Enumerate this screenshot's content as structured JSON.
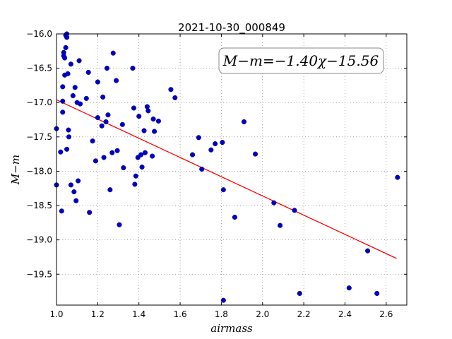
{
  "chart_data": {
    "type": "scatter",
    "title": "2021-10-30_000849",
    "xlabel": "airmass",
    "ylabel": "M−m",
    "xlim": [
      1.0,
      2.7
    ],
    "ylim": [
      -16.0,
      -19.95
    ],
    "y_inverted": true,
    "x_ticks": [
      1.0,
      1.2,
      1.4,
      1.6,
      1.8,
      2.0,
      2.2,
      2.4,
      2.6
    ],
    "x_tick_labels": [
      "1.0",
      "1.2",
      "1.4",
      "1.6",
      "1.8",
      "2.0",
      "2.2",
      "2.4",
      "2.6"
    ],
    "y_ticks": [
      -16.0,
      -16.5,
      -17.0,
      -17.5,
      -18.0,
      -18.5,
      -19.0,
      -19.5
    ],
    "y_tick_labels": [
      "−16.0",
      "−16.5",
      "−17.0",
      "−17.5",
      "−18.0",
      "−18.5",
      "−19.0",
      "−19.5"
    ],
    "grid": true,
    "annotation": "M−m=−1.40χ−15.56",
    "annotation_position": "top-right",
    "colors": {
      "points": "#0000cc",
      "fit_line": "#ff0000"
    },
    "fit_line": {
      "slope": -1.4,
      "intercept": -15.56,
      "x_range": [
        1.0,
        2.65
      ]
    },
    "points": [
      [
        1.0,
        -17.38
      ],
      [
        1.0,
        -18.2
      ],
      [
        1.02,
        -17.72
      ],
      [
        1.025,
        -18.58
      ],
      [
        1.03,
        -16.77
      ],
      [
        1.03,
        -16.98
      ],
      [
        1.03,
        -17.14
      ],
      [
        1.035,
        -16.27
      ],
      [
        1.035,
        -16.32
      ],
      [
        1.04,
        -16.35
      ],
      [
        1.04,
        -16.6
      ],
      [
        1.045,
        -16.02
      ],
      [
        1.045,
        -16.2
      ],
      [
        1.05,
        -16.0
      ],
      [
        1.05,
        -16.05
      ],
      [
        1.05,
        -17.68
      ],
      [
        1.055,
        -16.58
      ],
      [
        1.058,
        -17.4
      ],
      [
        1.06,
        -17.5
      ],
      [
        1.07,
        -16.44
      ],
      [
        1.07,
        -18.2
      ],
      [
        1.08,
        -16.9
      ],
      [
        1.085,
        -18.3
      ],
      [
        1.09,
        -16.78
      ],
      [
        1.095,
        -18.43
      ],
      [
        1.1,
        -17.0
      ],
      [
        1.105,
        -18.14
      ],
      [
        1.11,
        -16.39
      ],
      [
        1.115,
        -17.02
      ],
      [
        1.145,
        -16.94
      ],
      [
        1.155,
        -16.56
      ],
      [
        1.16,
        -18.6
      ],
      [
        1.175,
        -17.56
      ],
      [
        1.19,
        -17.85
      ],
      [
        1.2,
        -17.22
      ],
      [
        1.2,
        -16.7
      ],
      [
        1.22,
        -17.34
      ],
      [
        1.225,
        -16.92
      ],
      [
        1.23,
        -17.8
      ],
      [
        1.24,
        -17.28
      ],
      [
        1.245,
        -16.5
      ],
      [
        1.25,
        -17.18
      ],
      [
        1.26,
        -18.27
      ],
      [
        1.27,
        -17.73
      ],
      [
        1.275,
        -16.28
      ],
      [
        1.29,
        -16.68
      ],
      [
        1.295,
        -17.7
      ],
      [
        1.305,
        -18.78
      ],
      [
        1.32,
        -17.32
      ],
      [
        1.325,
        -17.95
      ],
      [
        1.37,
        -16.5
      ],
      [
        1.375,
        -17.08
      ],
      [
        1.38,
        -18.19
      ],
      [
        1.385,
        -18.07
      ],
      [
        1.395,
        -17.8
      ],
      [
        1.4,
        -17.2
      ],
      [
        1.41,
        -17.76
      ],
      [
        1.415,
        -17.94
      ],
      [
        1.425,
        -17.41
      ],
      [
        1.43,
        -17.73
      ],
      [
        1.44,
        -17.06
      ],
      [
        1.445,
        -17.12
      ],
      [
        1.465,
        -17.78
      ],
      [
        1.47,
        -17.24
      ],
      [
        1.475,
        -17.42
      ],
      [
        1.495,
        -17.27
      ],
      [
        1.555,
        -16.81
      ],
      [
        1.575,
        -16.93
      ],
      [
        1.66,
        -17.76
      ],
      [
        1.69,
        -17.51
      ],
      [
        1.705,
        -17.97
      ],
      [
        1.75,
        -17.69
      ],
      [
        1.77,
        -17.6
      ],
      [
        1.805,
        -17.58
      ],
      [
        1.81,
        -18.27
      ],
      [
        1.81,
        -19.88
      ],
      [
        1.865,
        -18.67
      ],
      [
        1.91,
        -17.28
      ],
      [
        1.965,
        -17.75
      ],
      [
        2.055,
        -18.46
      ],
      [
        2.085,
        -18.79
      ],
      [
        2.155,
        -18.57
      ],
      [
        2.18,
        -19.78
      ],
      [
        2.42,
        -19.7
      ],
      [
        2.51,
        -19.16
      ],
      [
        2.555,
        -19.78
      ],
      [
        2.655,
        -18.09
      ]
    ]
  }
}
